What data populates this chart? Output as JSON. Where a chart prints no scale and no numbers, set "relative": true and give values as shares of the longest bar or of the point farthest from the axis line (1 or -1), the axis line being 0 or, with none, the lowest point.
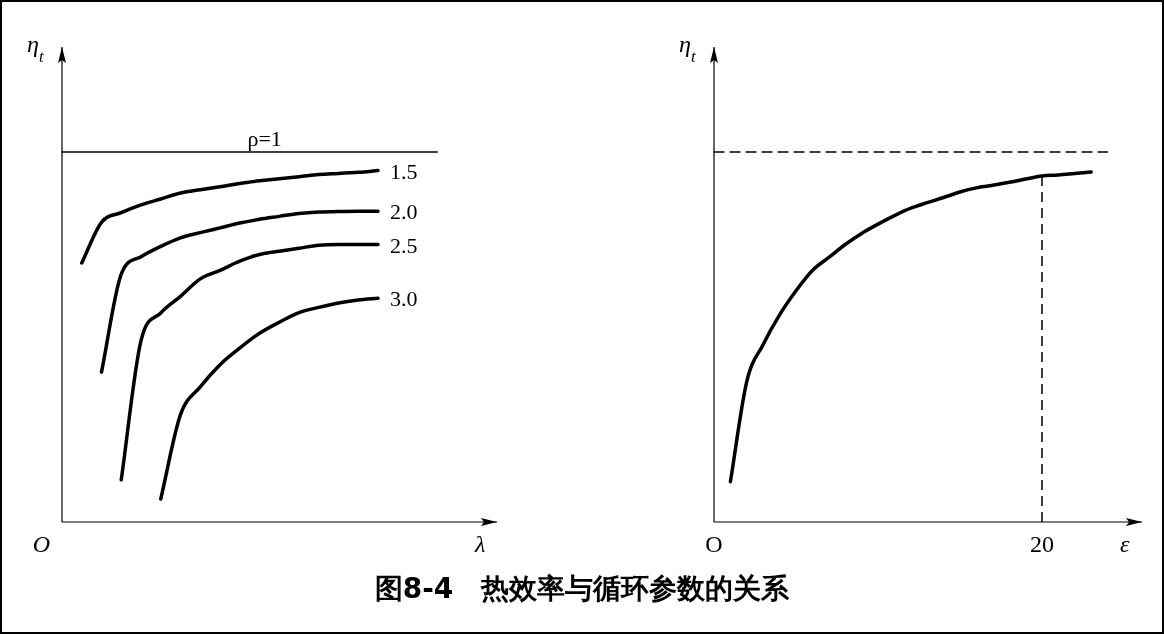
{
  "chart_data": [
    {
      "type": "line",
      "relative": true,
      "ylabel": "η$_{t}$",
      "xlabel": "λ",
      "annotations": [
        "O"
      ],
      "categories": [
        null,
        null,
        null,
        null,
        null,
        null,
        null,
        null,
        null,
        null,
        null,
        null,
        null,
        null,
        null,
        null,
        null,
        null,
        null,
        null,
        null
      ],
      "series": [
        {
          "name": "ρ=1",
          "color": "#000000",
          "values": [
            1,
            1,
            1,
            1,
            1,
            1,
            1,
            1,
            1,
            1,
            1,
            1,
            1,
            1,
            1,
            1,
            1,
            1,
            1,
            1,
            null
          ]
        },
        {
          "name": "1.5",
          "color": "#000000",
          "values": [
            null,
            0.7,
            0.81,
            0.836,
            0.857,
            0.873,
            0.889,
            0.898,
            0.906,
            0.915,
            0.922,
            0.928,
            0.933,
            0.939,
            0.942,
            0.945,
            0.95,
            null,
            null,
            null,
            null
          ]
        },
        {
          "name": "2.0",
          "color": "#000000",
          "values": [
            null,
            null,
            0.405,
            0.67,
            0.717,
            0.745,
            0.768,
            0.782,
            0.795,
            0.808,
            0.818,
            0.826,
            0.834,
            0.838,
            0.839,
            0.84,
            0.84,
            null,
            null,
            null,
            null
          ]
        },
        {
          "name": "2.5",
          "color": "#000000",
          "values": [
            null,
            null,
            null,
            0.114,
            0.49,
            0.565,
            0.61,
            0.657,
            0.68,
            0.705,
            0.723,
            0.732,
            0.74,
            0.748,
            0.75,
            0.75,
            0.75,
            null,
            null,
            null,
            null
          ]
        },
        {
          "name": "3.0",
          "color": "#000000",
          "values": [
            null,
            null,
            null,
            null,
            null,
            0.062,
            0.29,
            0.365,
            0.425,
            0.47,
            0.51,
            0.54,
            0.566,
            0.58,
            0.592,
            0.6,
            0.605,
            null,
            null,
            null,
            null
          ]
        }
      ]
    },
    {
      "type": "line",
      "relative": true,
      "ylabel": "η$_{t}$",
      "xlabel": "ε",
      "annotations": [
        "图8-4　热效率与循环参数的关系"
      ],
      "categories": [
        "O",
        null,
        null,
        null,
        null,
        null,
        null,
        null,
        null,
        null,
        null,
        null,
        null,
        null,
        null,
        null,
        null,
        null,
        null,
        null,
        "20",
        null,
        null,
        null,
        null,
        null
      ],
      "ref_lines": [
        {
          "axis": "x",
          "value": "20",
          "line_style": "dashed",
          "color": "#000000"
        }
      ],
      "series": [
        {
          "color": "#000000",
          "values": [
            null,
            0.109,
            0.38,
            0.48,
            0.56,
            0.625,
            0.68,
            0.715,
            0.75,
            0.78,
            0.805,
            0.828,
            0.848,
            0.863,
            0.877,
            0.892,
            0.903,
            0.91,
            0.918,
            0.927,
            0.935,
            0.938,
            0.942,
            0.946,
            null,
            null
          ]
        },
        {
          "color": "#000000",
          "line_style": "dashed",
          "values": [
            1,
            1,
            1,
            1,
            1,
            1,
            1,
            1,
            1,
            1,
            1,
            1,
            1,
            1,
            1,
            1,
            1,
            1,
            1,
            1,
            1,
            1,
            1,
            1,
            1,
            null
          ]
        }
      ]
    }
  ]
}
